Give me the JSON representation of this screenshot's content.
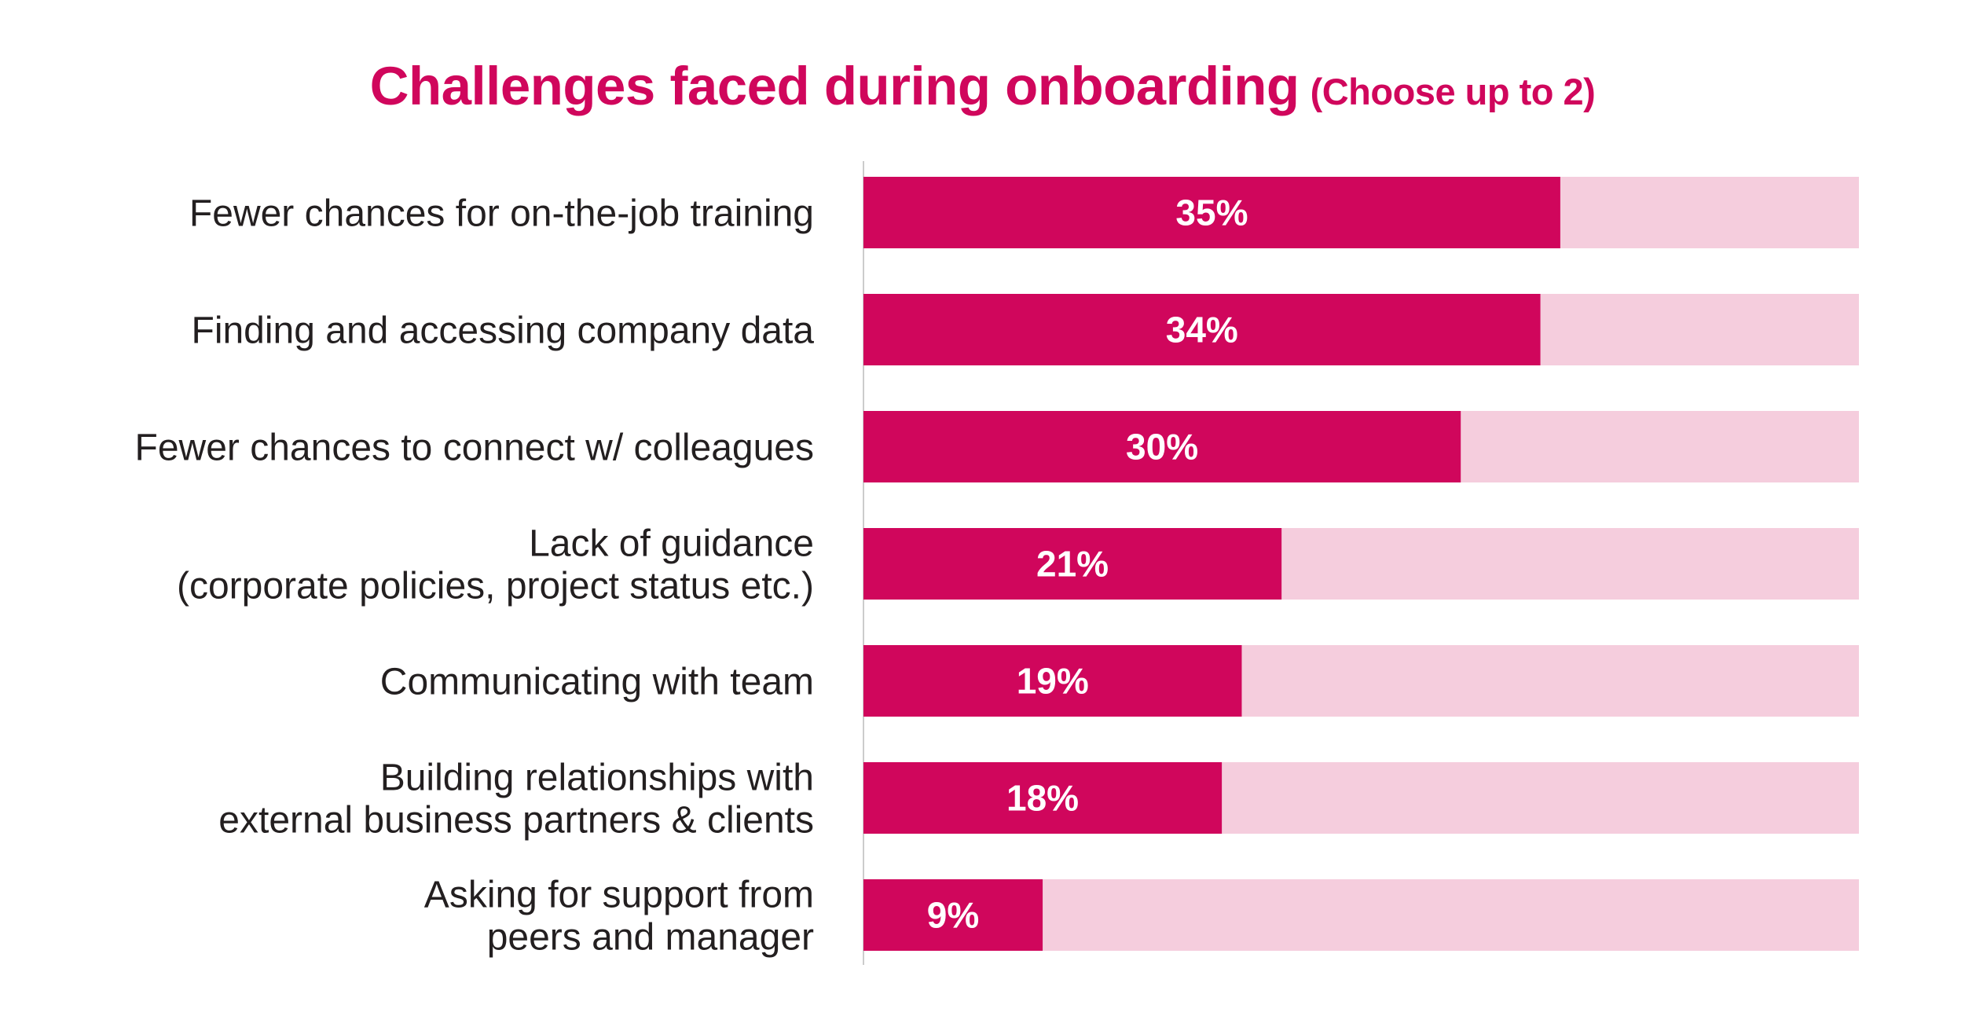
{
  "chart_data": {
    "type": "bar",
    "orientation": "horizontal",
    "title": "Challenges faced during onboarding",
    "subtitle": "(Choose up to 2)",
    "categories": [
      [
        "Fewer chances for on-the-job training"
      ],
      [
        "Finding and accessing company data"
      ],
      [
        "Fewer chances to connect w/ colleagues"
      ],
      [
        "Lack of guidance",
        "(corporate policies, project status etc.)"
      ],
      [
        "Communicating with team"
      ],
      [
        "Building relationships with",
        "external business partners & clients"
      ],
      [
        "Asking for support from",
        "peers and manager"
      ]
    ],
    "values": [
      35,
      34,
      30,
      21,
      19,
      18,
      9
    ],
    "value_labels": [
      "35%",
      "34%",
      "30%",
      "21%",
      "19%",
      "18%",
      "9%"
    ],
    "xlim": [
      0,
      50
    ],
    "grid": false,
    "legend": "none"
  },
  "colors": {
    "bar": "#d0065c",
    "track": "#f5cddd",
    "title": "#d0065c",
    "axis": "#cccccc"
  }
}
